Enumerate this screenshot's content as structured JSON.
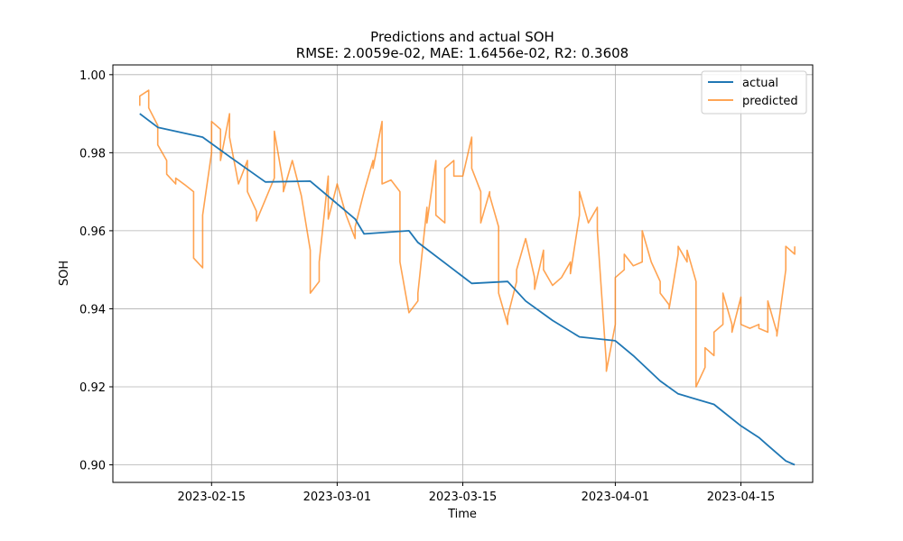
{
  "chart_data": {
    "type": "line",
    "title": "Predictions and actual SOH",
    "subtitle": "RMSE: 2.0059e-02, MAE: 1.6456e-02, R2: 0.3608",
    "xlabel": "Time",
    "ylabel": "SOH",
    "xlim": [
      "2023-02-04",
      "2023-04-23"
    ],
    "ylim": [
      0.8955,
      1.0025
    ],
    "x_ticks": [
      "2023-02-15",
      "2023-03-01",
      "2023-03-15",
      "2023-04-01",
      "2023-04-15"
    ],
    "y_ticks": [
      "0.90",
      "0.92",
      "0.94",
      "0.96",
      "0.98",
      "1.00"
    ],
    "grid": true,
    "legend_position": "top-right",
    "series": [
      {
        "name": "actual",
        "color": "#1f77b4",
        "points": [
          [
            "2023-02-07",
            0.99
          ],
          [
            "2023-02-09",
            0.9865
          ],
          [
            "2023-02-14",
            0.984
          ],
          [
            "2023-02-17",
            0.979
          ],
          [
            "2023-02-21",
            0.9725
          ],
          [
            "2023-02-26",
            0.9727
          ],
          [
            "2023-03-03",
            0.963
          ],
          [
            "2023-03-04",
            0.9592
          ],
          [
            "2023-03-09",
            0.96
          ],
          [
            "2023-03-10",
            0.957
          ],
          [
            "2023-03-14",
            0.95
          ],
          [
            "2023-03-16",
            0.9465
          ],
          [
            "2023-03-20",
            0.947
          ],
          [
            "2023-03-22",
            0.942
          ],
          [
            "2023-03-25",
            0.937
          ],
          [
            "2023-03-28",
            0.9328
          ],
          [
            "2023-04-01",
            0.9318
          ],
          [
            "2023-04-03",
            0.928
          ],
          [
            "2023-04-06",
            0.9215
          ],
          [
            "2023-04-08",
            0.9182
          ],
          [
            "2023-04-12",
            0.9155
          ],
          [
            "2023-04-15",
            0.91
          ],
          [
            "2023-04-17",
            0.907
          ],
          [
            "2023-04-18",
            0.905
          ],
          [
            "2023-04-20",
            0.901
          ],
          [
            "2023-04-21",
            0.9
          ]
        ]
      },
      {
        "name": "predicted",
        "color": "#ff7f0e",
        "points": [
          [
            "2023-02-07",
            0.992
          ],
          [
            "2023-02-07",
            0.9945
          ],
          [
            "2023-02-08",
            0.996
          ],
          [
            "2023-02-08",
            0.9915
          ],
          [
            "2023-02-09",
            0.987
          ],
          [
            "2023-02-09",
            0.982
          ],
          [
            "2023-02-10",
            0.978
          ],
          [
            "2023-02-10",
            0.9745
          ],
          [
            "2023-02-11",
            0.972
          ],
          [
            "2023-02-11",
            0.9735
          ],
          [
            "2023-02-12",
            0.9718
          ],
          [
            "2023-02-13",
            0.97
          ],
          [
            "2023-02-13",
            0.953
          ],
          [
            "2023-02-14",
            0.9505
          ],
          [
            "2023-02-14",
            0.964
          ],
          [
            "2023-02-15",
            0.98
          ],
          [
            "2023-02-15",
            0.988
          ],
          [
            "2023-02-16",
            0.986
          ],
          [
            "2023-02-16",
            0.978
          ],
          [
            "2023-02-17",
            0.99
          ],
          [
            "2023-02-17",
            0.984
          ],
          [
            "2023-02-18",
            0.972
          ],
          [
            "2023-02-19",
            0.978
          ],
          [
            "2023-02-19",
            0.97
          ],
          [
            "2023-02-20",
            0.965
          ],
          [
            "2023-02-20",
            0.9625
          ],
          [
            "2023-02-21",
            0.968
          ],
          [
            "2023-02-22",
            0.9735
          ],
          [
            "2023-02-22",
            0.9855
          ],
          [
            "2023-02-23",
            0.972
          ],
          [
            "2023-02-23",
            0.97
          ],
          [
            "2023-02-24",
            0.978
          ],
          [
            "2023-02-25",
            0.969
          ],
          [
            "2023-02-26",
            0.955
          ],
          [
            "2023-02-26",
            0.944
          ],
          [
            "2023-02-27",
            0.947
          ],
          [
            "2023-02-27",
            0.952
          ],
          [
            "2023-02-28",
            0.974
          ],
          [
            "2023-02-28",
            0.963
          ],
          [
            "2023-03-01",
            0.972
          ],
          [
            "2023-03-02",
            0.964
          ],
          [
            "2023-03-03",
            0.958
          ],
          [
            "2023-03-03",
            0.961
          ],
          [
            "2023-03-04",
            0.97
          ],
          [
            "2023-03-05",
            0.978
          ],
          [
            "2023-03-05",
            0.976
          ],
          [
            "2023-03-06",
            0.988
          ],
          [
            "2023-03-06",
            0.972
          ],
          [
            "2023-03-07",
            0.973
          ],
          [
            "2023-03-08",
            0.97
          ],
          [
            "2023-03-08",
            0.952
          ],
          [
            "2023-03-09",
            0.939
          ],
          [
            "2023-03-10",
            0.942
          ],
          [
            "2023-03-10",
            0.944
          ],
          [
            "2023-03-11",
            0.966
          ],
          [
            "2023-03-11",
            0.962
          ],
          [
            "2023-03-12",
            0.978
          ],
          [
            "2023-03-12",
            0.964
          ],
          [
            "2023-03-13",
            0.962
          ],
          [
            "2023-03-13",
            0.976
          ],
          [
            "2023-03-14",
            0.978
          ],
          [
            "2023-03-14",
            0.974
          ],
          [
            "2023-03-15",
            0.974
          ],
          [
            "2023-03-16",
            0.984
          ],
          [
            "2023-03-16",
            0.976
          ],
          [
            "2023-03-17",
            0.97
          ],
          [
            "2023-03-17",
            0.962
          ],
          [
            "2023-03-18",
            0.97
          ],
          [
            "2023-03-18",
            0.969
          ],
          [
            "2023-03-19",
            0.961
          ],
          [
            "2023-03-19",
            0.944
          ],
          [
            "2023-03-20",
            0.936
          ],
          [
            "2023-03-20",
            0.938
          ],
          [
            "2023-03-21",
            0.947
          ],
          [
            "2023-03-21",
            0.95
          ],
          [
            "2023-03-22",
            0.958
          ],
          [
            "2023-03-23",
            0.948
          ],
          [
            "2023-03-23",
            0.945
          ],
          [
            "2023-03-24",
            0.955
          ],
          [
            "2023-03-24",
            0.95
          ],
          [
            "2023-03-25",
            0.946
          ],
          [
            "2023-03-26",
            0.948
          ],
          [
            "2023-03-27",
            0.952
          ],
          [
            "2023-03-27",
            0.949
          ],
          [
            "2023-03-28",
            0.964
          ],
          [
            "2023-03-28",
            0.97
          ],
          [
            "2023-03-29",
            0.962
          ],
          [
            "2023-03-30",
            0.966
          ],
          [
            "2023-03-30",
            0.96
          ],
          [
            "2023-03-31",
            0.926
          ],
          [
            "2023-03-31",
            0.924
          ],
          [
            "2023-04-01",
            0.936
          ],
          [
            "2023-04-01",
            0.948
          ],
          [
            "2023-04-02",
            0.95
          ],
          [
            "2023-04-02",
            0.954
          ],
          [
            "2023-04-03",
            0.951
          ],
          [
            "2023-04-04",
            0.952
          ],
          [
            "2023-04-04",
            0.96
          ],
          [
            "2023-04-05",
            0.952
          ],
          [
            "2023-04-06",
            0.947
          ],
          [
            "2023-04-06",
            0.944
          ],
          [
            "2023-04-07",
            0.941
          ],
          [
            "2023-04-07",
            0.94
          ],
          [
            "2023-04-08",
            0.954
          ],
          [
            "2023-04-08",
            0.956
          ],
          [
            "2023-04-09",
            0.952
          ],
          [
            "2023-04-09",
            0.955
          ],
          [
            "2023-04-10",
            0.947
          ],
          [
            "2023-04-10",
            0.92
          ],
          [
            "2023-04-11",
            0.925
          ],
          [
            "2023-04-11",
            0.93
          ],
          [
            "2023-04-12",
            0.928
          ],
          [
            "2023-04-12",
            0.934
          ],
          [
            "2023-04-13",
            0.936
          ],
          [
            "2023-04-13",
            0.944
          ],
          [
            "2023-04-14",
            0.936
          ],
          [
            "2023-04-14",
            0.934
          ],
          [
            "2023-04-15",
            0.943
          ],
          [
            "2023-04-15",
            0.936
          ],
          [
            "2023-04-16",
            0.935
          ],
          [
            "2023-04-17",
            0.936
          ],
          [
            "2023-04-17",
            0.935
          ],
          [
            "2023-04-18",
            0.934
          ],
          [
            "2023-04-18",
            0.942
          ],
          [
            "2023-04-19",
            0.934
          ],
          [
            "2023-04-19",
            0.933
          ],
          [
            "2023-04-20",
            0.95
          ],
          [
            "2023-04-20",
            0.956
          ],
          [
            "2023-04-21",
            0.954
          ],
          [
            "2023-04-21",
            0.956
          ]
        ]
      }
    ]
  }
}
